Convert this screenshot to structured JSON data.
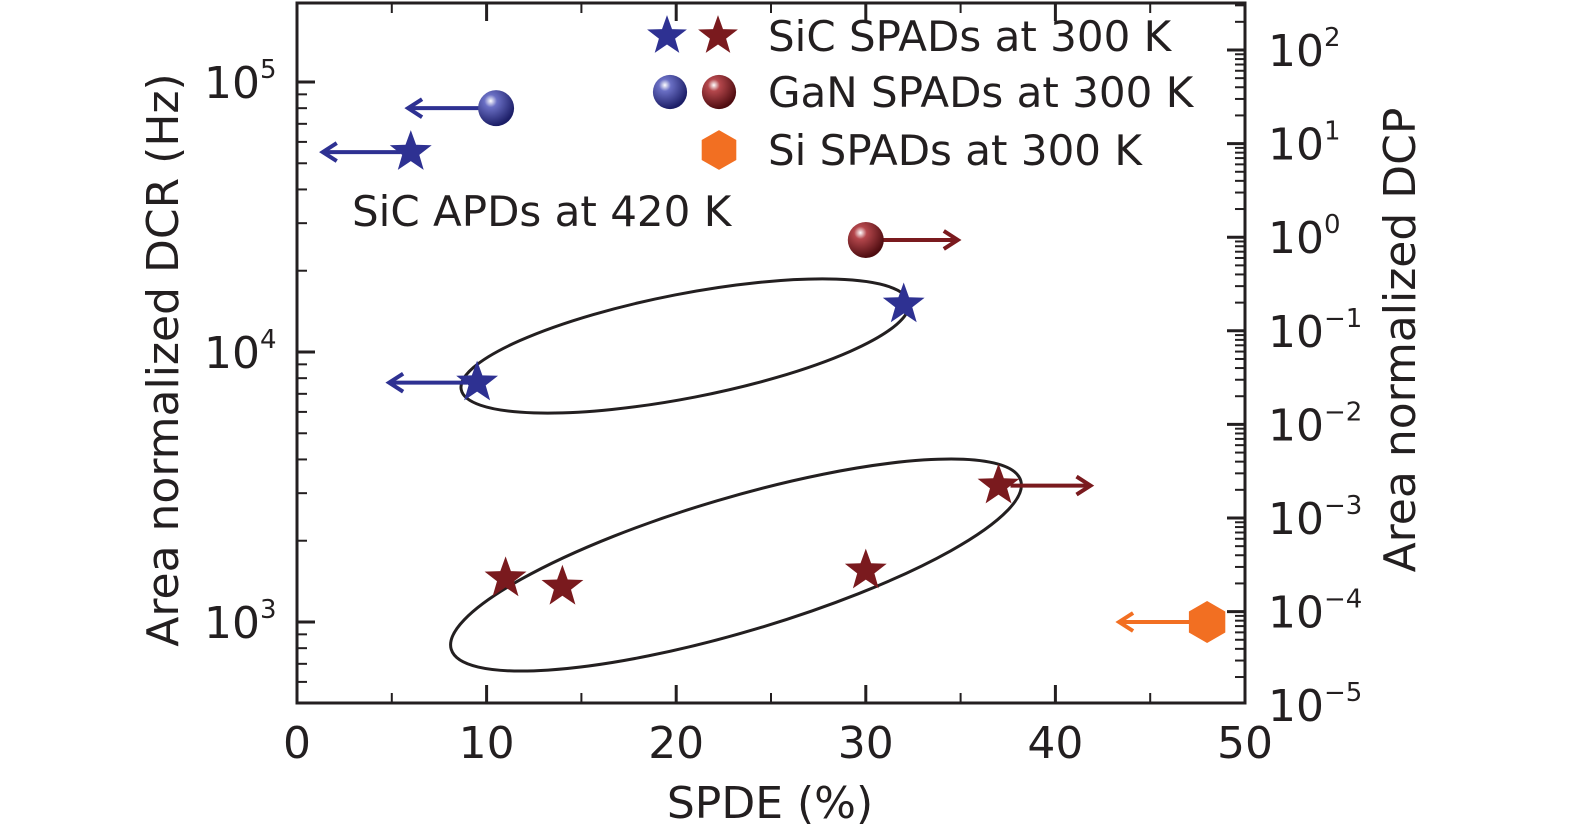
{
  "chart_data": {
    "type": "scatter",
    "xlabel": "SPDE (%)",
    "ylabel": "Area normalized DCR (Hz)",
    "y2label": "Area normalized DCP",
    "xlim": [
      0,
      50
    ],
    "x_ticks": [
      "0",
      "10",
      "20",
      "30",
      "40",
      "50"
    ],
    "ylim": [
      500,
      200000
    ],
    "yscale": "log",
    "y_ticks": [
      {
        "base": "10",
        "exp": "3",
        "value": 1000
      },
      {
        "base": "10",
        "exp": "4",
        "value": 10000
      },
      {
        "base": "10",
        "exp": "5",
        "value": 100000
      }
    ],
    "y2scale": "log",
    "y2_ticks": [
      {
        "base": "10",
        "exp": "2",
        "value": 100
      },
      {
        "base": "10",
        "exp": "1",
        "value": 10
      },
      {
        "base": "10",
        "exp": "0",
        "value": 1
      },
      {
        "base": "10",
        "exp": "−1",
        "value": 0.1
      },
      {
        "base": "10",
        "exp": "−2",
        "value": 0.01
      },
      {
        "base": "10",
        "exp": "−3",
        "value": 0.001
      },
      {
        "base": "10",
        "exp": "−4",
        "value": 0.0001
      },
      {
        "base": "10",
        "exp": "−5",
        "value": 1e-05
      }
    ],
    "legend": {
      "position": "top-right",
      "entries": [
        {
          "label": "SiC SPADs at 300 K",
          "markers": [
            "star-navy",
            "star-maroon"
          ]
        },
        {
          "label": "GaN SPADs at 300 K",
          "markers": [
            "sphere-navy",
            "sphere-maroon"
          ]
        },
        {
          "label": "Si SPADs at 300 K",
          "markers": [
            "hexagon-orange"
          ]
        }
      ]
    },
    "annotations": [
      {
        "text": "SiC APDs at 420 K"
      }
    ],
    "points": [
      {
        "marker": "sphere",
        "color": "#2e3192",
        "x": 10.5,
        "y": 80000,
        "arrow": "left"
      },
      {
        "marker": "star",
        "color": "#2e3192",
        "x": 6,
        "y": 55000,
        "arrow": "left"
      },
      {
        "marker": "sphere",
        "color": "#7a1a1e",
        "x": 30,
        "y": 26000,
        "arrow": "right"
      },
      {
        "marker": "star",
        "color": "#2e3192",
        "x": 32,
        "y": 15000,
        "arrow": ""
      },
      {
        "marker": "star",
        "color": "#2e3192",
        "x": 9.5,
        "y": 7700,
        "arrow": "left"
      },
      {
        "marker": "star",
        "color": "#7a1a1e",
        "x": 37,
        "y": 3200,
        "arrow": "right"
      },
      {
        "marker": "star",
        "color": "#7a1a1e",
        "x": 11,
        "y": 1450,
        "arrow": ""
      },
      {
        "marker": "star",
        "color": "#7a1a1e",
        "x": 14,
        "y": 1350,
        "arrow": ""
      },
      {
        "marker": "star",
        "color": "#7a1a1e",
        "x": 30,
        "y": 1550,
        "arrow": ""
      },
      {
        "marker": "hexagon",
        "color": "#f26f22",
        "x": 48,
        "y": 1000,
        "arrow": "left"
      }
    ],
    "colors": {
      "navy": "#2e3192",
      "maroon": "#7a1a1e",
      "orange": "#f26f22",
      "axis": "#231f20"
    }
  }
}
